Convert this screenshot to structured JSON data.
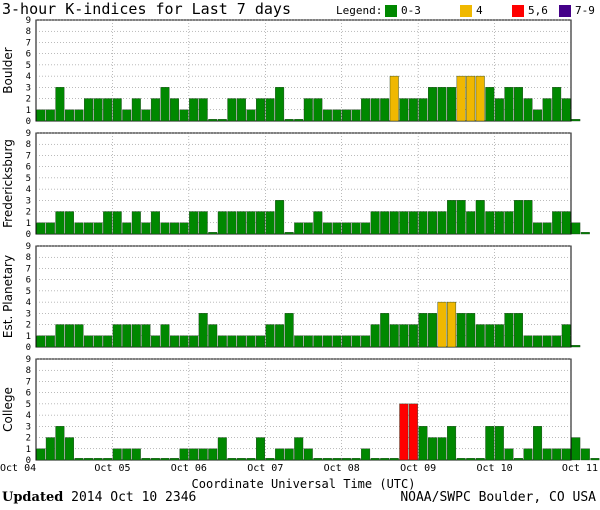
{
  "header": {
    "title": "3-hour K-indices for Last 7 days",
    "legend_label": "Legend:",
    "legend": [
      {
        "label": "0-3",
        "color": "#008800"
      },
      {
        "label": "4",
        "color": "#f0b800"
      },
      {
        "label": "5,6",
        "color": "#ff0000"
      },
      {
        "label": "7-9",
        "color": "#440088"
      }
    ]
  },
  "footer": {
    "updated_label": "Updated",
    "updated_value": "2014 Oct 10 2346",
    "credit": "NOAA/SWPC Boulder, CO USA"
  },
  "chart_data": {
    "type": "bar",
    "xlabel": "Coordinate Universal Time (UTC)",
    "x_ticks": [
      "Oct 04",
      "Oct 05",
      "Oct 06",
      "Oct 07",
      "Oct 08",
      "Oct 09",
      "Oct 10",
      "Oct 11"
    ],
    "y_ticks": [
      "0",
      "1",
      "2",
      "3",
      "4",
      "5",
      "6",
      "7",
      "8",
      "9"
    ],
    "ylim": [
      0,
      9
    ],
    "grid": true,
    "color_rule": {
      "0-3": "#008800",
      "4": "#f0b800",
      "5-6": "#ff0000",
      "7-9": "#440088"
    },
    "panels": [
      {
        "name": "Boulder",
        "values": [
          1,
          1,
          3,
          1,
          1,
          2,
          2,
          2,
          2,
          1,
          2,
          1,
          2,
          3,
          2,
          1,
          2,
          2,
          0,
          0,
          2,
          2,
          1,
          2,
          2,
          3,
          0,
          0,
          2,
          2,
          1,
          1,
          1,
          1,
          2,
          2,
          2,
          4,
          2,
          2,
          2,
          3,
          3,
          3,
          4,
          4,
          4,
          3,
          2,
          3,
          3,
          2,
          1,
          2,
          3,
          2,
          0
        ]
      },
      {
        "name": "Fredericksburg",
        "values": [
          1,
          1,
          2,
          2,
          1,
          1,
          1,
          2,
          2,
          1,
          2,
          1,
          2,
          1,
          1,
          1,
          2,
          2,
          0,
          2,
          2,
          2,
          2,
          2,
          2,
          3,
          0,
          1,
          1,
          2,
          1,
          1,
          1,
          1,
          1,
          2,
          2,
          2,
          2,
          2,
          2,
          2,
          2,
          3,
          3,
          2,
          3,
          2,
          2,
          2,
          3,
          3,
          1,
          1,
          2,
          2,
          1,
          0
        ]
      },
      {
        "name": "Est. Planetary",
        "values": [
          1,
          1,
          2,
          2,
          2,
          1,
          1,
          1,
          2,
          2,
          2,
          2,
          1,
          2,
          1,
          1,
          1,
          3,
          2,
          1,
          1,
          1,
          1,
          1,
          2,
          2,
          3,
          1,
          1,
          1,
          1,
          1,
          1,
          1,
          1,
          2,
          3,
          2,
          2,
          2,
          3,
          3,
          4,
          4,
          3,
          3,
          2,
          2,
          2,
          3,
          3,
          1,
          1,
          1,
          1,
          2,
          0
        ]
      },
      {
        "name": "College",
        "values": [
          1,
          2,
          3,
          2,
          0,
          0,
          0,
          0,
          1,
          1,
          1,
          0,
          0,
          0,
          0,
          1,
          1,
          1,
          1,
          2,
          0,
          0,
          0,
          2,
          0,
          1,
          1,
          2,
          1,
          0,
          0,
          0,
          0,
          0,
          1,
          0,
          0,
          0,
          5,
          5,
          3,
          2,
          2,
          3,
          0,
          0,
          0,
          3,
          3,
          1,
          0,
          1,
          3,
          1,
          1,
          1,
          2,
          1,
          0
        ]
      }
    ]
  }
}
